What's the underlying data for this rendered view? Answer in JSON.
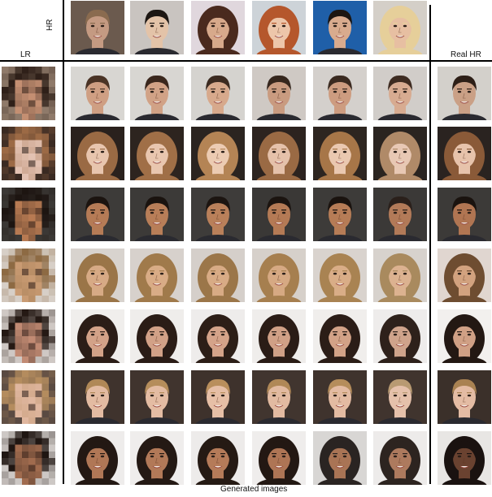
{
  "labels": {
    "hr": "HR",
    "lr": "LR",
    "real_hr": "Real  HR",
    "generated": "Generated images"
  },
  "palette": {
    "background": "#ffffff",
    "divider": "#000000"
  },
  "hr_refs": [
    {
      "name": "hr-ref-1",
      "bg": "#6b5a4e",
      "skin": "#c49a82",
      "hair": "#8a6b4f",
      "style": "short"
    },
    {
      "name": "hr-ref-2",
      "bg": "#c9c4c0",
      "skin": "#e3c3a8",
      "hair": "#1d1713",
      "style": "short"
    },
    {
      "name": "hr-ref-3",
      "bg": "#e0d7dd",
      "skin": "#d7a98b",
      "hair": "#4a2a1e",
      "style": "long"
    },
    {
      "name": "hr-ref-4",
      "bg": "#cdd3d8",
      "skin": "#edc6aa",
      "hair": "#b5572c",
      "style": "long"
    },
    {
      "name": "hr-ref-5",
      "bg": "#1f5fa8",
      "skin": "#d8ab8e",
      "hair": "#1b1511",
      "style": "short"
    },
    {
      "name": "hr-ref-6",
      "bg": "#d4cfc8",
      "skin": "#e7bfa2",
      "hair": "#e6cf9a",
      "style": "long"
    }
  ],
  "rows": [
    {
      "lr": {
        "bg": "#8f7a6a",
        "skin": "#c48f72",
        "hair": "#2f2019"
      },
      "gen_style": "short",
      "generated": [
        {
          "bg": "#d8d6d2",
          "skin": "#cf9f83",
          "hair": "#4a3325"
        },
        {
          "bg": "#d8d6d2",
          "skin": "#d1a286",
          "hair": "#3a271d"
        },
        {
          "bg": "#d5d3cf",
          "skin": "#d7a98c",
          "hair": "#3b2a20"
        },
        {
          "bg": "#cfc9c4",
          "skin": "#c99b80",
          "hair": "#35261d"
        },
        {
          "bg": "#d4d0cc",
          "skin": "#cd9c80",
          "hair": "#3a2a20"
        },
        {
          "bg": "#d1cdc9",
          "skin": "#d7ab91",
          "hair": "#3d2b21"
        }
      ],
      "real": {
        "bg": "#d3d0cb",
        "skin": "#caa086",
        "hair": "#2d1f17"
      }
    },
    {
      "lr": {
        "bg": "#3a2a22",
        "skin": "#e3c2b2",
        "hair": "#9c6a45"
      },
      "gen_style": "long",
      "generated": [
        {
          "bg": "#2a211d",
          "skin": "#e8c5ae",
          "hair": "#9a6a44"
        },
        {
          "bg": "#2d241f",
          "skin": "#e9c6af",
          "hair": "#a06f47"
        },
        {
          "bg": "#2b2420",
          "skin": "#eccbb2",
          "hair": "#b48455"
        },
        {
          "bg": "#2c231f",
          "skin": "#e5c1aa",
          "hair": "#9a6a44"
        },
        {
          "bg": "#2d2520",
          "skin": "#eac8b0",
          "hair": "#a77648"
        },
        {
          "bg": "#2a2420",
          "skin": "#e8c8b4",
          "hair": "#b08a68"
        }
      ],
      "real": {
        "bg": "#2a2320",
        "skin": "#e7c3ab",
        "hair": "#8a5a38"
      }
    },
    {
      "lr": {
        "bg": "#3b3835",
        "skin": "#b77a52",
        "hair": "#1d1511"
      },
      "gen_style": "short",
      "generated": [
        {
          "bg": "#3d3b39",
          "skin": "#b57b56",
          "hair": "#1b1410"
        },
        {
          "bg": "#3c3a38",
          "skin": "#b87e58",
          "hair": "#1a130f"
        },
        {
          "bg": "#3e3c3a",
          "skin": "#b9805a",
          "hair": "#1c1511"
        },
        {
          "bg": "#3a3836",
          "skin": "#b47a55",
          "hair": "#1b1410"
        },
        {
          "bg": "#3d3b39",
          "skin": "#b67c56",
          "hair": "#1a130f"
        },
        {
          "bg": "#3b3937",
          "skin": "#b27a58",
          "hair": "#2a201b"
        }
      ],
      "real": {
        "bg": "#3c3a38",
        "skin": "#b07552",
        "hair": "#1a130f"
      }
    },
    {
      "lr": {
        "bg": "#d7cfc7",
        "skin": "#c99b73",
        "hair": "#8d6a43"
      },
      "gen_style": "long",
      "generated": [
        {
          "bg": "#d8d3ce",
          "skin": "#d7aa85",
          "hair": "#9a7548"
        },
        {
          "bg": "#d7d1cc",
          "skin": "#d9ac86",
          "hair": "#a07a4b"
        },
        {
          "bg": "#d5cfca",
          "skin": "#d8ab85",
          "hair": "#9b7649"
        },
        {
          "bg": "#d6d0ca",
          "skin": "#d6a983",
          "hair": "#a67f4f"
        },
        {
          "bg": "#d9d3ce",
          "skin": "#d9ad87",
          "hair": "#a98352"
        },
        {
          "bg": "#d7d2cd",
          "skin": "#dcb290",
          "hair": "#a98a5e"
        }
      ],
      "real": {
        "bg": "#e0d6d0",
        "skin": "#d2a27f",
        "hair": "#6e4d31"
      }
    },
    {
      "lr": {
        "bg": "#cfc8c4",
        "skin": "#c18a73",
        "hair": "#251914"
      },
      "gen_style": "long",
      "generated": [
        {
          "bg": "#f0eeec",
          "skin": "#d3a288",
          "hair": "#2b1d17"
        },
        {
          "bg": "#efedeb",
          "skin": "#d2a187",
          "hair": "#2a1c16"
        },
        {
          "bg": "#eeeceb",
          "skin": "#d4a389",
          "hair": "#2c1e17"
        },
        {
          "bg": "#efedeb",
          "skin": "#d0a086",
          "hair": "#2a1c16"
        },
        {
          "bg": "#f0eeec",
          "skin": "#d2a287",
          "hair": "#2b1d17"
        },
        {
          "bg": "#eeeceb",
          "skin": "#cfa38b",
          "hair": "#2e211b"
        }
      ],
      "real": {
        "bg": "#f2f0ee",
        "skin": "#d0a085",
        "hair": "#231813"
      }
    },
    {
      "lr": {
        "bg": "#5a4a42",
        "skin": "#e0b79f",
        "hair": "#b48c5e"
      },
      "gen_style": "short",
      "generated": [
        {
          "bg": "#3f332d",
          "skin": "#e3bba2",
          "hair": "#b08857"
        },
        {
          "bg": "#40342e",
          "skin": "#e4bca3",
          "hair": "#b58d5b"
        },
        {
          "bg": "#3e322c",
          "skin": "#e6bfa6",
          "hair": "#b98f5c"
        },
        {
          "bg": "#41352f",
          "skin": "#e2baa1",
          "hair": "#b08857"
        },
        {
          "bg": "#3f332d",
          "skin": "#e3bba2",
          "hair": "#b58d5b"
        },
        {
          "bg": "#40342e",
          "skin": "#e5c1ab",
          "hair": "#b89a72"
        }
      ],
      "real": {
        "bg": "#3b302a",
        "skin": "#e4bca4",
        "hair": "#a98252"
      }
    },
    {
      "lr": {
        "bg": "#cdc8c5",
        "skin": "#a06b4e",
        "hair": "#1f1612"
      },
      "gen_style": "long",
      "generated": [
        {
          "bg": "#eeeceb",
          "skin": "#b07756",
          "hair": "#231813"
        },
        {
          "bg": "#efedec",
          "skin": "#b27958",
          "hair": "#241914"
        },
        {
          "bg": "#edebea",
          "skin": "#b57b59",
          "hair": "#251a14"
        },
        {
          "bg": "#efedec",
          "skin": "#ae7555",
          "hair": "#231813"
        },
        {
          "bg": "#d8d6d4",
          "skin": "#a97455",
          "hair": "#2a2422"
        },
        {
          "bg": "#edebea",
          "skin": "#ad7a5e",
          "hair": "#2d2420"
        }
      ],
      "real": {
        "bg": "#e8e6e4",
        "skin": "#6a4230",
        "hair": "#1a1210"
      }
    }
  ]
}
